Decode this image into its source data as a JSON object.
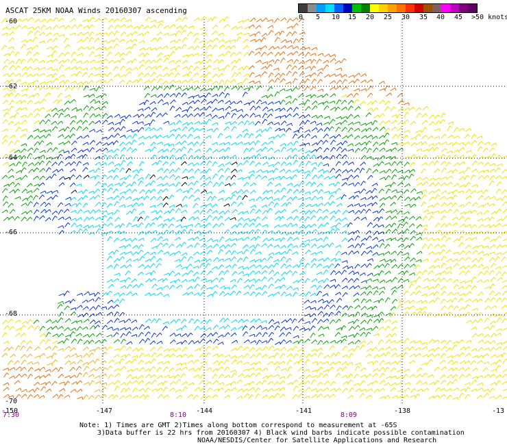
{
  "title": "ASCAT 25KM NOAA Winds 20160307 ascending",
  "colorbar": {
    "segments": [
      "#3c3c3c",
      "#8c8c8c",
      "#00a0ff",
      "#00e0ff",
      "#0060ff",
      "#0000c0",
      "#00c000",
      "#008000",
      "#ffff00",
      "#ffd000",
      "#ffa000",
      "#ff7000",
      "#ff3000",
      "#d00000",
      "#a05000",
      "#806060",
      "#ff00ff",
      "#c000c0",
      "#800080",
      "#600060"
    ],
    "ticks": [
      "0",
      "5",
      "10",
      "15",
      "20",
      "25",
      "30",
      "35",
      "40",
      "45",
      ">50 knots"
    ]
  },
  "lat_labels": [
    "-60",
    "-62",
    "-64",
    "-66",
    "-68",
    "-70"
  ],
  "lon_labels": [
    "-150",
    "-147",
    "-144",
    "-141",
    "-138",
    "-13"
  ],
  "time_labels": [
    "7:30",
    "8:10",
    "8:09"
  ],
  "footer": {
    "line1": "Note: 1) Times are GMT 2)Times along bottom correspond to measurement at -65S",
    "line2": "3)Data buffer is 22 hrs from 20160307 4) Black wind barbs indicate possible contamination",
    "line3": "NOAA/NESDIS/Center for Satellite Applications and Research"
  },
  "wind_colors": {
    "lt10": "#00d8f0",
    "10to15": "#0030d0",
    "15to20": "#00a000",
    "20to25": "#f0e000",
    "25to30": "#f0b020",
    "30to35": "#e07010",
    "contamination": "#000000"
  }
}
